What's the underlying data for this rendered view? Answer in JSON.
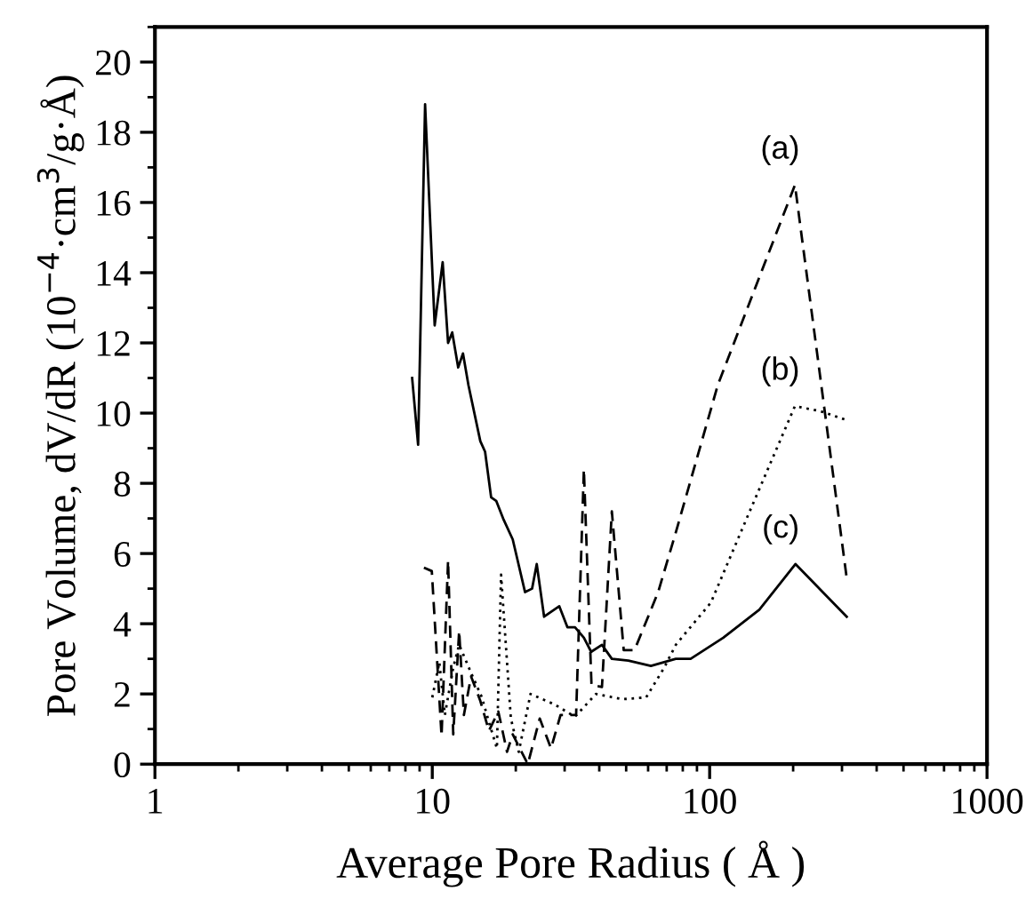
{
  "chart_data": {
    "type": "line",
    "xlabel": "Average Pore Radius ( Å )",
    "ylabel": "Pore Volume, dV/dR (10$^{−4}$·cm$^{3}$/g·Å)",
    "log": "x",
    "xlim": [
      1,
      1000
    ],
    "xticks": [
      1,
      10,
      100,
      1000
    ],
    "ylim": [
      0,
      21
    ],
    "yticks": [
      0,
      2,
      4,
      6,
      8,
      10,
      12,
      14,
      16,
      18,
      20
    ],
    "grid": false,
    "legend": false,
    "marker": "none",
    "series": [
      {
        "name": "(a)",
        "color": "#000000",
        "line_style": "dashed",
        "x": [
          9.33,
          9.96,
          10.8,
          11.4,
          11.9,
          12.5,
          13.0,
          13.8,
          14.9,
          16.0,
          17.3,
          18.6,
          19.5,
          22.1,
          24.4,
          26.8,
          29.0,
          33.0,
          35.2,
          37.5,
          40.9,
          44.4,
          49.0,
          53.6,
          65.2,
          75.5,
          107,
          203,
          312
        ],
        "values": [
          5.6,
          5.5,
          0.8,
          5.8,
          0.85,
          3.8,
          1.4,
          2.5,
          1.8,
          0.95,
          1.5,
          0.35,
          0.85,
          0,
          1.3,
          0.45,
          1.4,
          1.4,
          8.4,
          2.25,
          2.2,
          7.2,
          3.25,
          3.25,
          4.9,
          6.6,
          10.8,
          16.5,
          5.3
        ]
      },
      {
        "name": "(b)",
        "color": "#000000",
        "line_style": "dotted",
        "x": [
          10.0,
          10.6,
          11.1,
          11.9,
          12.5,
          13.8,
          15.1,
          16.0,
          17.1,
          17.7,
          19.2,
          20.5,
          22.6,
          27.6,
          32.7,
          38.9,
          48.5,
          59,
          68.6,
          75.5,
          101,
          136,
          203,
          252,
          312
        ],
        "values": [
          1.9,
          2.9,
          1.4,
          2.75,
          3.4,
          2.6,
          1.9,
          1.2,
          0.45,
          5.4,
          1.3,
          0.35,
          2.0,
          1.7,
          1.35,
          2.0,
          1.85,
          1.9,
          2.75,
          3.4,
          4.6,
          7.0,
          10.2,
          10.05,
          9.8
        ]
      },
      {
        "name": "(c)",
        "color": "#000000",
        "line_style": "solid",
        "x": [
          8.46,
          8.89,
          9.42,
          10.2,
          10.9,
          11.4,
          11.8,
          12.4,
          12.9,
          13.5,
          14.9,
          15.5,
          16.3,
          17.0,
          18.0,
          19.5,
          21.6,
          22.9,
          23.8,
          25.3,
          28.7,
          30.7,
          32.7,
          35.2,
          37.4,
          40.9,
          44.4,
          50.9,
          61.4,
          75.5,
          85.4,
          112,
          151,
          204,
          312
        ],
        "values": [
          11.0,
          9.1,
          18.8,
          12.5,
          14.3,
          12.0,
          12.3,
          11.3,
          11.7,
          10.8,
          9.2,
          8.9,
          7.6,
          7.5,
          7.0,
          6.4,
          4.9,
          5.0,
          5.7,
          4.2,
          4.5,
          3.9,
          3.9,
          3.6,
          3.2,
          3.4,
          3.0,
          2.95,
          2.8,
          3.0,
          3.0,
          3.6,
          4.4,
          5.7,
          4.2
        ]
      }
    ]
  }
}
